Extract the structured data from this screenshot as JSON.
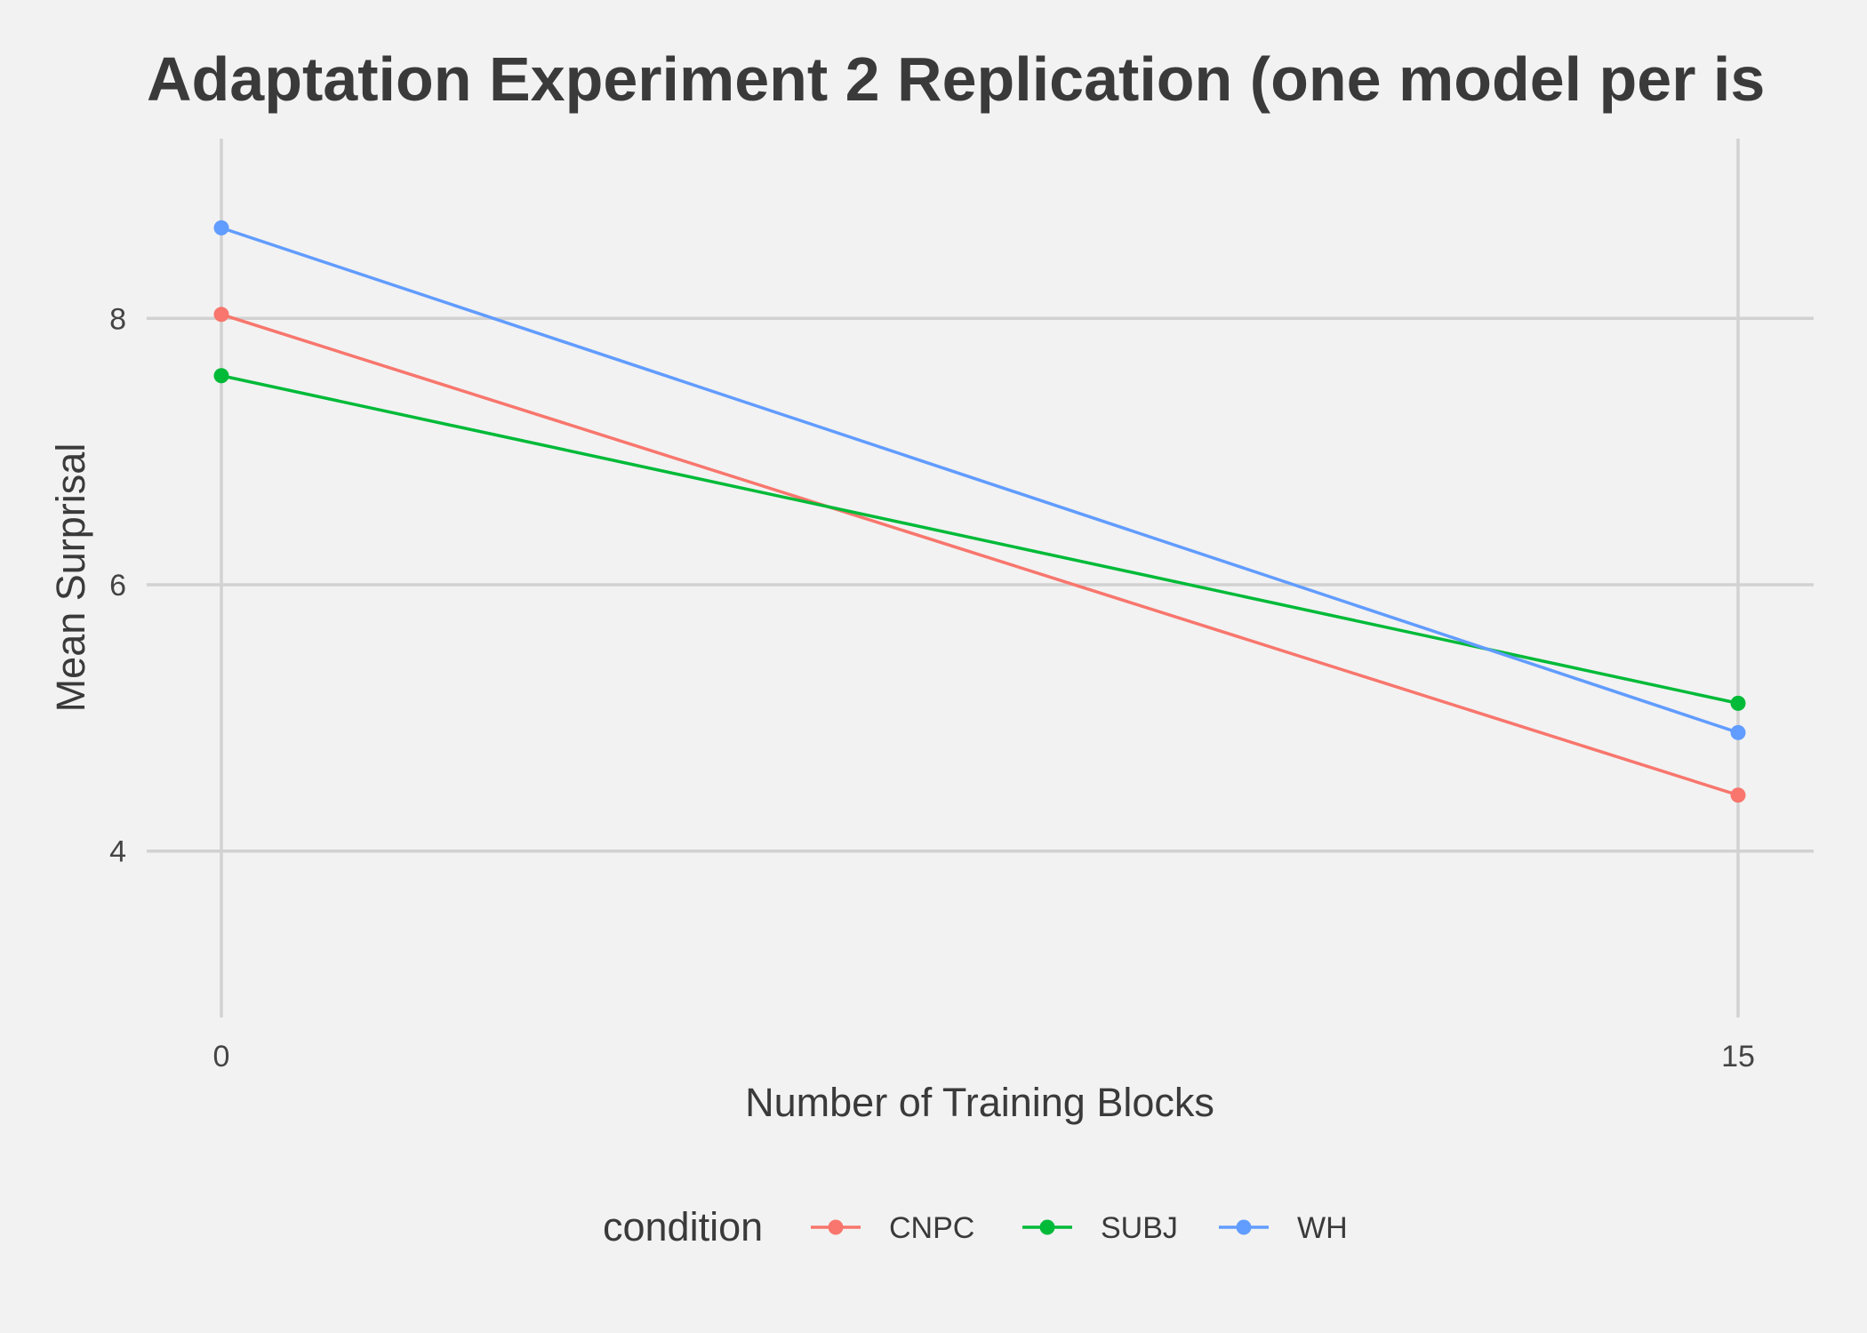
{
  "chart_data": {
    "type": "line",
    "title": "Adaptation Experiment 2 Replication (one model per is",
    "xlabel": "Number of Training Blocks",
    "ylabel": "Mean Surprisal",
    "x": [
      0,
      15
    ],
    "x_ticks": [
      "0",
      "15"
    ],
    "y_ticks": [
      "4",
      "6",
      "8"
    ],
    "xlim": [
      0,
      15
    ],
    "ylim": [
      2.75,
      9.35
    ],
    "grid": true,
    "legend": {
      "title": "condition",
      "position": "bottom"
    },
    "series": [
      {
        "name": "CNPC",
        "color": "#f8766d",
        "values": [
          8.03,
          4.42
        ]
      },
      {
        "name": "SUBJ",
        "color": "#00ba38",
        "values": [
          7.57,
          5.11
        ]
      },
      {
        "name": "WH",
        "color": "#619cff",
        "values": [
          8.68,
          4.89
        ]
      }
    ]
  }
}
